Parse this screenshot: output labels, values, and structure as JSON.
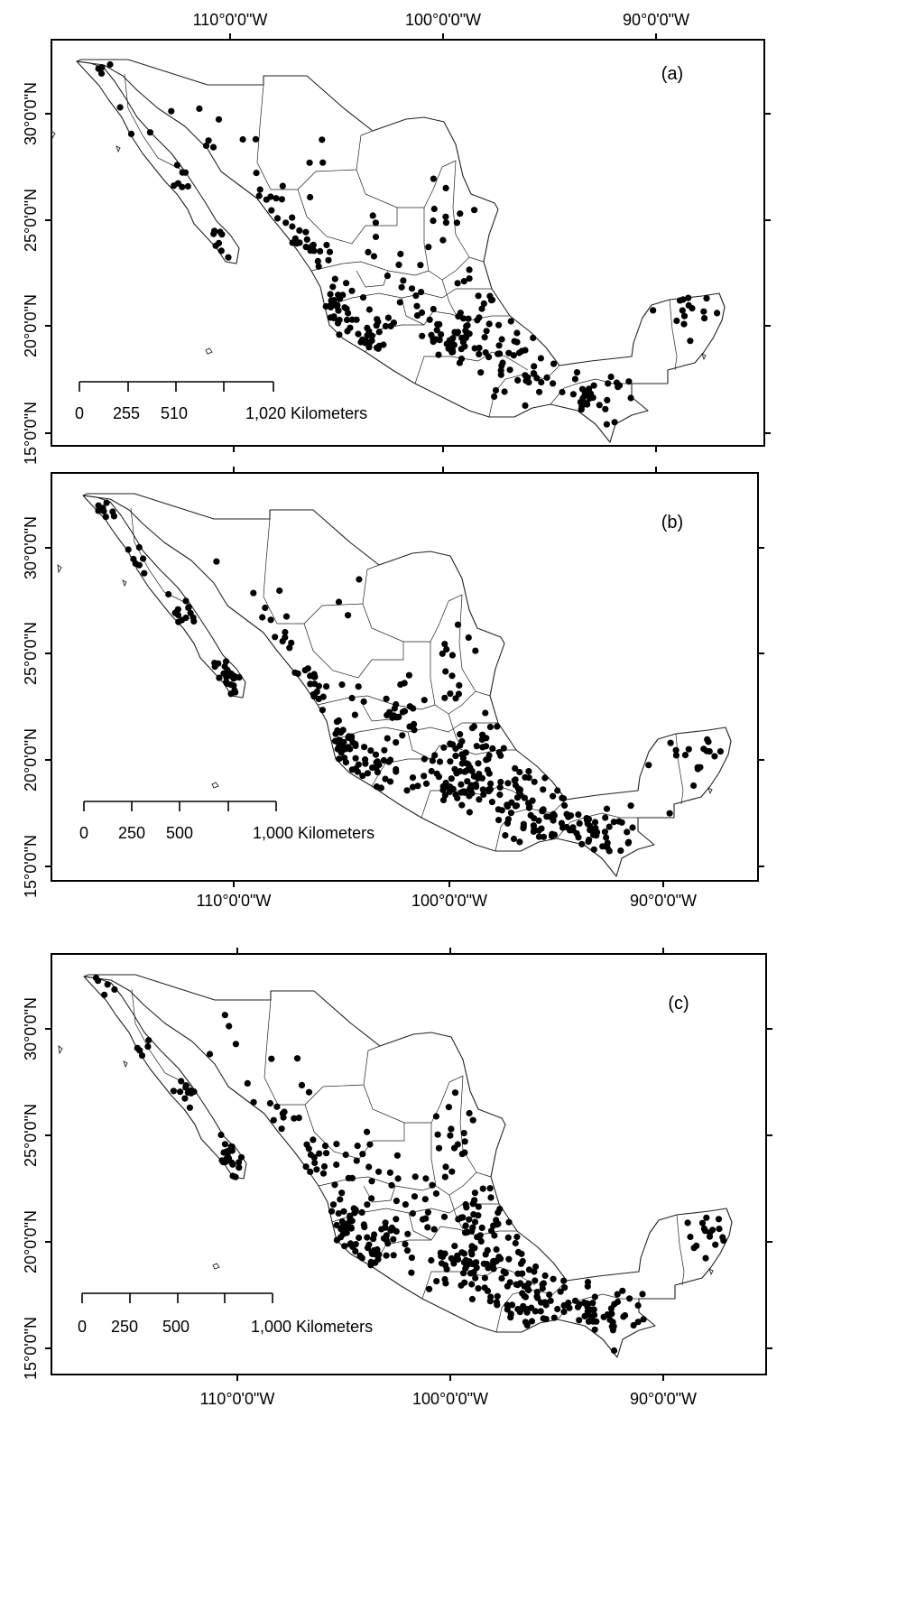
{
  "figure": {
    "panels": [
      {
        "label": "(a)",
        "lon_top": [
          "110°0'0\"W",
          "100°0'0\"W",
          "90°0'0\"W"
        ],
        "lon_bottom": [],
        "lat_labels": [
          "30°0'0\"N",
          "25°0'0\"N",
          "20°0'0\"N",
          "15°0'0\"N"
        ],
        "scale_ticks": [
          "0",
          "255",
          "510",
          "1,020 Kilometers"
        ],
        "seed": 11,
        "n_points": 300
      },
      {
        "label": "(b)",
        "lon_top": [],
        "lon_bottom": [
          "110°0'0\"W",
          "100°0'0\"W",
          "90°0'0\"W"
        ],
        "lat_labels": [
          "30°0'0\"N",
          "25°0'0\"N",
          "20°0'0\"N",
          "15°0'0\"N"
        ],
        "scale_ticks": [
          "0",
          "250",
          "500",
          "1,000 Kilometers"
        ],
        "seed": 23,
        "n_points": 420
      },
      {
        "label": "(c)",
        "lon_top": [],
        "lon_bottom": [
          "110°0'0\"W",
          "100°0'0\"W",
          "90°0'0\"W"
        ],
        "lat_labels": [
          "30°0'0\"N",
          "25°0'0\"N",
          "20°0'0\"N",
          "15°0'0\"N"
        ],
        "scale_ticks": [
          "0",
          "250",
          "500",
          "1,000 Kilometers"
        ],
        "seed": 37,
        "n_points": 440
      }
    ],
    "colors": {
      "frame": "#000000",
      "points": "#000000",
      "outline": "#222222"
    }
  }
}
